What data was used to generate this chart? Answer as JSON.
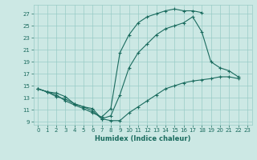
{
  "xlabel": "Humidex (Indice chaleur)",
  "bg_color": "#cce8e4",
  "grid_color": "#99ccc7",
  "line_color": "#1a6b5e",
  "xlim": [
    -0.5,
    23.5
  ],
  "ylim": [
    8.5,
    28.5
  ],
  "xticks": [
    0,
    1,
    2,
    3,
    4,
    5,
    6,
    7,
    8,
    9,
    10,
    11,
    12,
    13,
    14,
    15,
    16,
    17,
    18,
    19,
    20,
    21,
    22,
    23
  ],
  "yticks": [
    9,
    11,
    13,
    15,
    17,
    19,
    21,
    23,
    25,
    27
  ],
  "line1_x": [
    0,
    1,
    2,
    3,
    4,
    5,
    6,
    7,
    8,
    9,
    10,
    11,
    12,
    13,
    14,
    15,
    16,
    17,
    18
  ],
  "line1_y": [
    14.5,
    14.0,
    13.5,
    12.5,
    11.8,
    11.2,
    10.5,
    9.8,
    11.2,
    20.5,
    23.5,
    25.5,
    26.5,
    27.0,
    27.5,
    27.8,
    27.5,
    27.5,
    27.2
  ],
  "line2_x": [
    0,
    1,
    2,
    3,
    4,
    5,
    6,
    7,
    8,
    9,
    10,
    11,
    12,
    13,
    14,
    15,
    16,
    17,
    18,
    19,
    20,
    21,
    22
  ],
  "line2_y": [
    14.5,
    14.0,
    13.2,
    12.8,
    12.0,
    11.5,
    11.2,
    9.5,
    10.0,
    13.5,
    18.0,
    20.5,
    22.0,
    23.5,
    24.5,
    25.0,
    25.5,
    26.5,
    24.0,
    19.0,
    18.0,
    17.5,
    16.5
  ],
  "line3_x": [
    0,
    1,
    2,
    3,
    4,
    5,
    6,
    7,
    8,
    9,
    10,
    11,
    12,
    13,
    14,
    15,
    16,
    17,
    18,
    19,
    20,
    21,
    22
  ],
  "line3_y": [
    14.5,
    14.0,
    13.8,
    13.2,
    12.0,
    11.5,
    10.8,
    9.5,
    9.2,
    9.2,
    10.5,
    11.5,
    12.5,
    13.5,
    14.5,
    15.0,
    15.5,
    15.8,
    16.0,
    16.2,
    16.5,
    16.5,
    16.2
  ]
}
